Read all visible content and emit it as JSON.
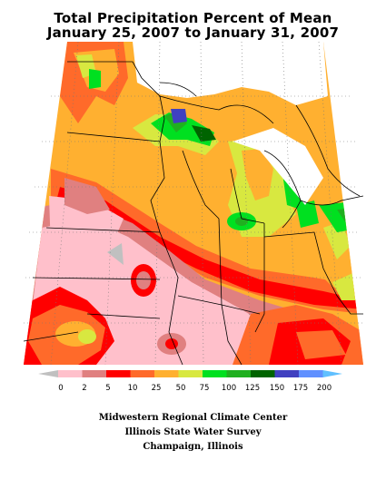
{
  "title": {
    "line1": "Total Precipitation Percent of Mean",
    "line2": "January 25, 2007 to January 31, 2007"
  },
  "legend": {
    "tick_labels": [
      "0",
      "2",
      "5",
      "10",
      "25",
      "50",
      "75",
      "100",
      "125",
      "150",
      "175",
      "200"
    ],
    "colors": [
      "#ffc0cb",
      "#e08080",
      "#ff0000",
      "#ff6a2a",
      "#ffb030",
      "#d8e840",
      "#00e020",
      "#20b020",
      "#006400",
      "#4040c0",
      "#6090ff"
    ],
    "below_color": "#c0c0c0",
    "above_color": "#60c0ff"
  },
  "colors": {
    "pink": "#ffc0cb",
    "rose": "#e08080",
    "red": "#ff0000",
    "orange_red": "#ff6a2a",
    "orange": "#ffb030",
    "yellow_green": "#d8e840",
    "green": "#00e020",
    "mid_green": "#20b020",
    "dark_green": "#006400",
    "blue": "#4040c0",
    "gray": "#c0c0c0"
  },
  "credits": {
    "line1": "Midwestern Regional Climate Center",
    "line2": "Illinois State Water Survey",
    "line3": "Champaign, Illinois"
  }
}
